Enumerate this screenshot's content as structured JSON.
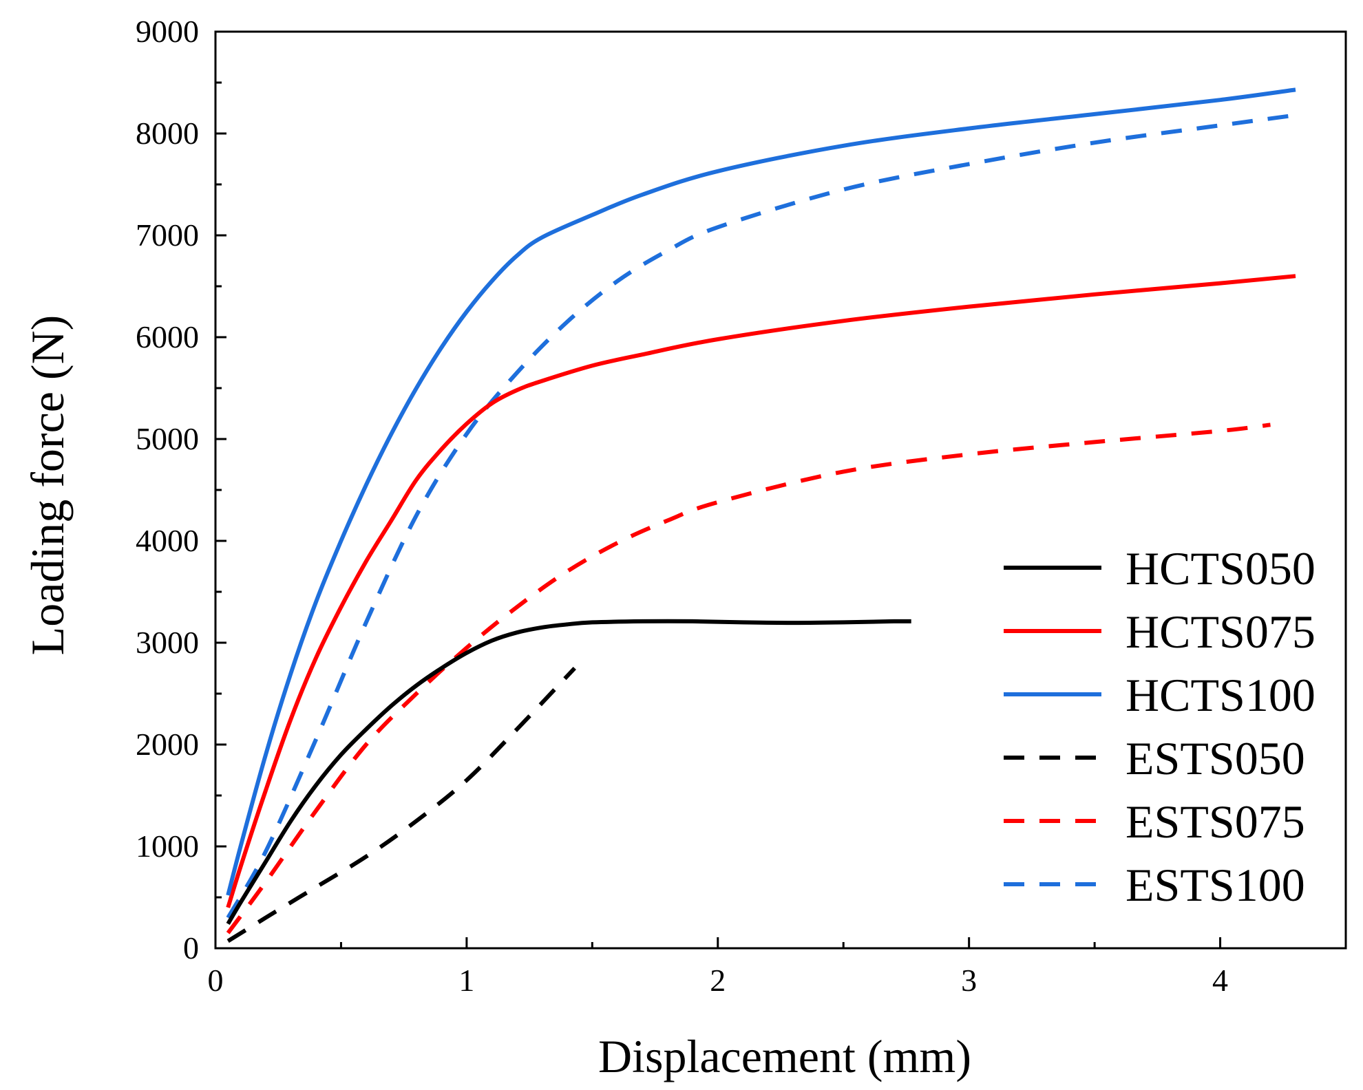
{
  "chart_data": {
    "type": "line",
    "title": "",
    "xlabel": "Displacement (mm)",
    "ylabel": "Loading force (N)",
    "xlim": [
      0,
      4.5
    ],
    "ylim": [
      0,
      9000
    ],
    "x_ticks": [
      0,
      1,
      2,
      3,
      4
    ],
    "x_tick_labels": [
      "0",
      "1",
      "2",
      "3",
      "4"
    ],
    "x_minor_step": 0.5,
    "y_ticks": [
      0,
      1000,
      2000,
      3000,
      4000,
      5000,
      6000,
      7000,
      8000,
      9000
    ],
    "y_tick_labels": [
      "0",
      "1000",
      "2000",
      "3000",
      "4000",
      "5000",
      "6000",
      "7000",
      "8000",
      "9000"
    ],
    "y_minor_step": 500,
    "grid": false,
    "legend_position": "bottom-right",
    "series": [
      {
        "name": "HCTS050",
        "color": "#000000",
        "style": "solid",
        "x": [
          0.05,
          0.1,
          0.2,
          0.3,
          0.4,
          0.5,
          0.6,
          0.7,
          0.8,
          0.9,
          1.0,
          1.1,
          1.2,
          1.3,
          1.4,
          1.5,
          1.7,
          1.9,
          2.1,
          2.3,
          2.5,
          2.7,
          2.77
        ],
        "y": [
          240,
          450,
          850,
          1250,
          1600,
          1900,
          2150,
          2380,
          2580,
          2750,
          2900,
          3020,
          3100,
          3150,
          3180,
          3200,
          3210,
          3210,
          3200,
          3195,
          3200,
          3210,
          3210
        ]
      },
      {
        "name": "HCTS075",
        "color": "#ff0000",
        "style": "solid",
        "x": [
          0.05,
          0.1,
          0.2,
          0.3,
          0.4,
          0.5,
          0.6,
          0.7,
          0.8,
          0.9,
          1.0,
          1.1,
          1.2,
          1.3,
          1.5,
          1.7,
          2.0,
          2.5,
          3.0,
          3.5,
          4.0,
          4.3
        ],
        "y": [
          400,
          800,
          1550,
          2250,
          2850,
          3350,
          3800,
          4200,
          4600,
          4900,
          5150,
          5350,
          5480,
          5570,
          5720,
          5830,
          5980,
          6160,
          6300,
          6420,
          6530,
          6600
        ]
      },
      {
        "name": "HCTS100",
        "color": "#1e6fdc",
        "style": "solid",
        "x": [
          0.05,
          0.1,
          0.2,
          0.3,
          0.4,
          0.5,
          0.6,
          0.7,
          0.8,
          0.9,
          1.0,
          1.1,
          1.2,
          1.3,
          1.5,
          1.7,
          2.0,
          2.5,
          3.0,
          3.5,
          4.0,
          4.3
        ],
        "y": [
          520,
          1000,
          1900,
          2700,
          3400,
          4000,
          4550,
          5050,
          5500,
          5900,
          6250,
          6550,
          6800,
          6980,
          7200,
          7400,
          7630,
          7880,
          8050,
          8190,
          8330,
          8430
        ]
      },
      {
        "name": "ESTS050",
        "color": "#000000",
        "style": "dashed",
        "x": [
          0.05,
          0.2,
          0.4,
          0.6,
          0.8,
          1.0,
          1.2,
          1.43
        ],
        "y": [
          70,
          300,
          600,
          900,
          1250,
          1650,
          2150,
          2750
        ]
      },
      {
        "name": "ESTS075",
        "color": "#ff0000",
        "style": "dashed",
        "x": [
          0.05,
          0.2,
          0.4,
          0.6,
          0.8,
          1.0,
          1.2,
          1.4,
          1.6,
          1.8,
          2.0,
          2.5,
          3.0,
          3.5,
          4.0,
          4.2
        ],
        "y": [
          150,
          650,
          1350,
          2000,
          2500,
          2950,
          3350,
          3700,
          3980,
          4200,
          4380,
          4680,
          4850,
          4970,
          5080,
          5140
        ]
      },
      {
        "name": "ESTS100",
        "color": "#1e6fdc",
        "style": "dashed",
        "x": [
          0.05,
          0.2,
          0.4,
          0.6,
          0.8,
          1.0,
          1.2,
          1.4,
          1.6,
          1.8,
          2.0,
          2.5,
          3.0,
          3.5,
          4.0,
          4.3
        ],
        "y": [
          300,
          950,
          2050,
          3200,
          4250,
          5050,
          5650,
          6150,
          6550,
          6850,
          7080,
          7450,
          7700,
          7910,
          8080,
          8180
        ]
      }
    ]
  }
}
